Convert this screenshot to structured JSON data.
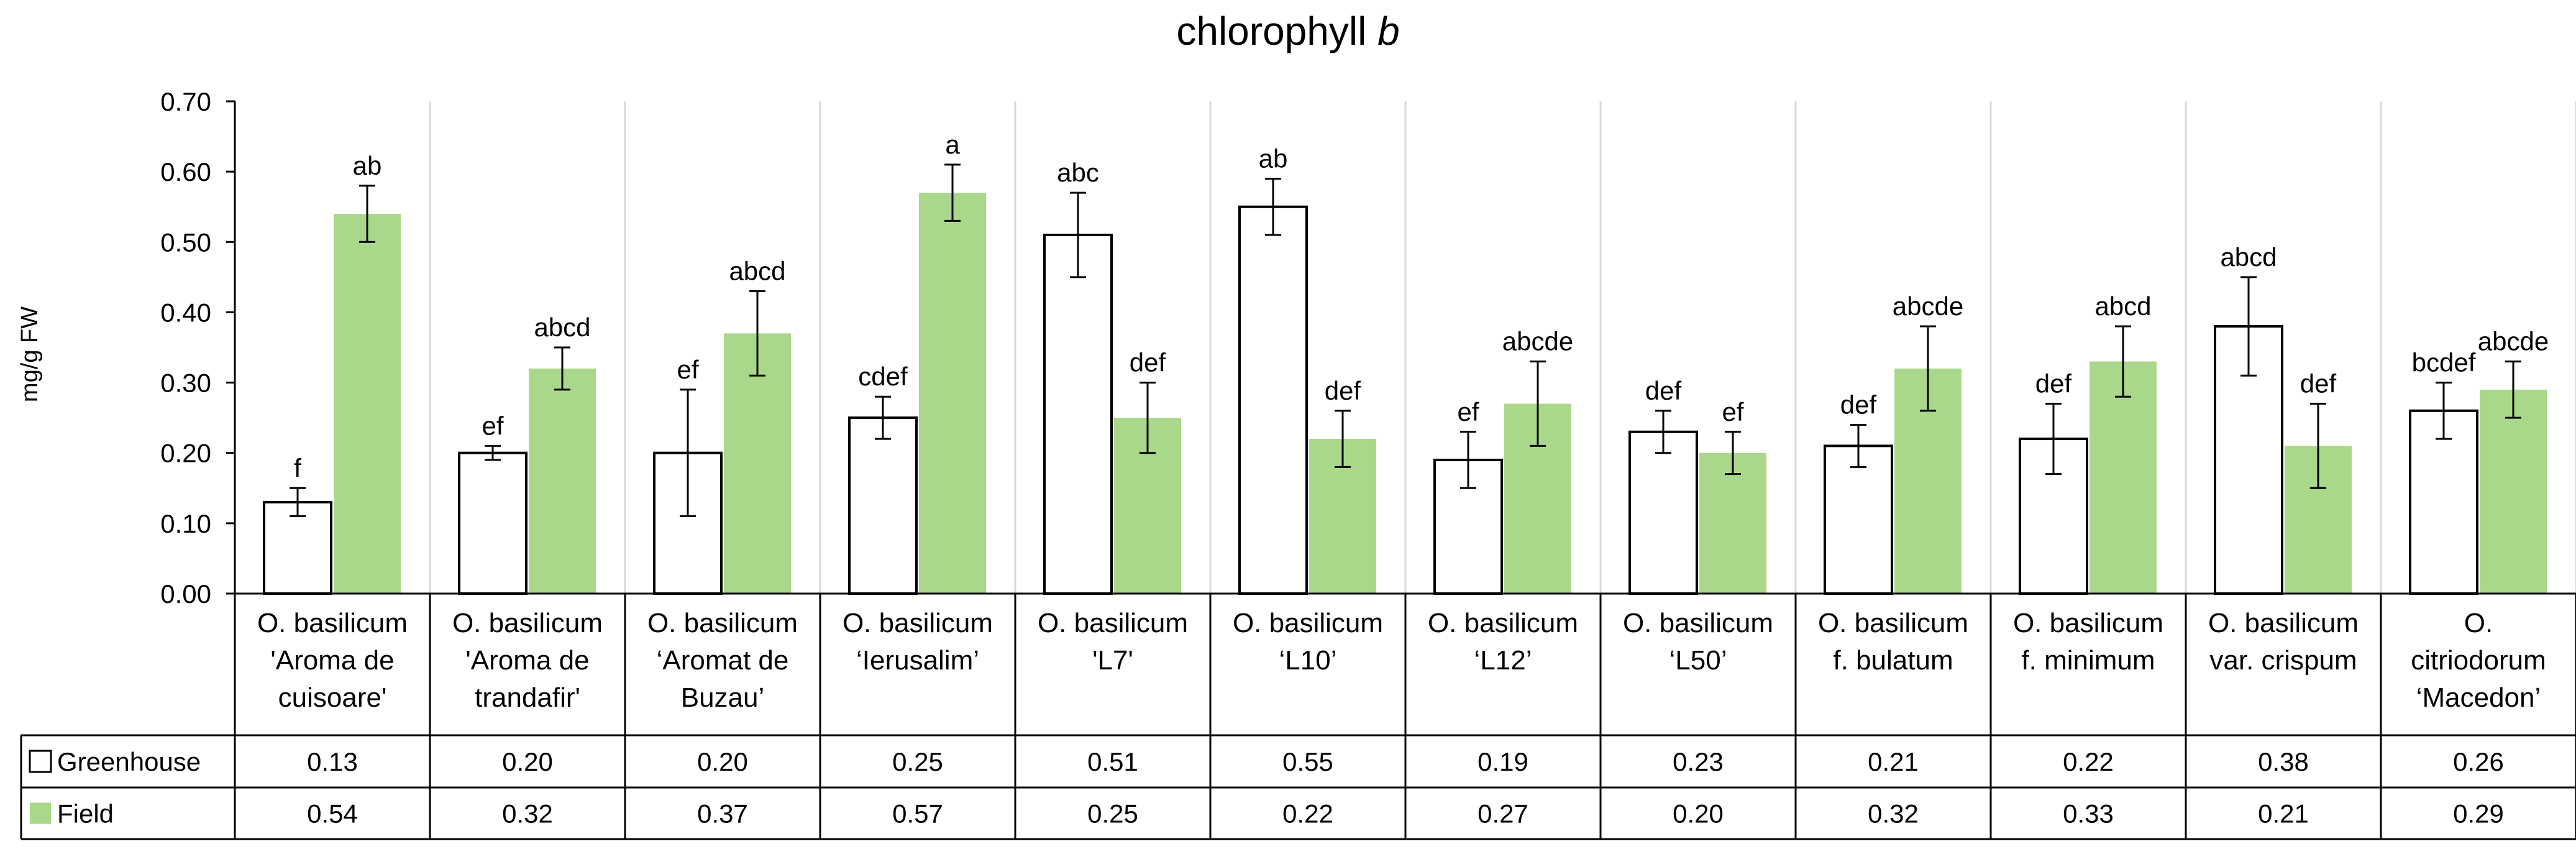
{
  "chart_data": {
    "type": "bar",
    "title_main": "chlorophyll ",
    "title_italic": "b",
    "ylabel": "mg/g FW",
    "ylim": [
      0,
      0.7
    ],
    "yticks": [
      "0.00",
      "0.10",
      "0.20",
      "0.30",
      "0.40",
      "0.50",
      "0.60",
      "0.70"
    ],
    "grid": "vertical separators between categories",
    "legend_placement": "data-table rows below x-axis",
    "categories": [
      [
        "O. basilicum",
        "'Aroma de",
        "cuisoare'"
      ],
      [
        "O. basilicum",
        "'Aroma de",
        "trandafir'"
      ],
      [
        "O. basilicum",
        "‘Aromat de",
        "Buzau’"
      ],
      [
        "O. basilicum",
        "‘Ierusalim’"
      ],
      [
        "O. basilicum",
        "'L7'"
      ],
      [
        "O. basilicum",
        "‘L10’"
      ],
      [
        "O. basilicum",
        "‘L12’"
      ],
      [
        "O. basilicum",
        "‘L50’"
      ],
      [
        "O. basilicum",
        "f. bulatum"
      ],
      [
        "O. basilicum",
        "f. minimum"
      ],
      [
        "O. basilicum",
        "var. crispum"
      ],
      [
        "O.",
        "citriodorum",
        "‘Macedon’"
      ]
    ],
    "series": [
      {
        "name": "Greenhouse",
        "color": "#ffffff",
        "stroke": "#000000",
        "values": [
          0.13,
          0.2,
          0.2,
          0.25,
          0.51,
          0.55,
          0.19,
          0.23,
          0.21,
          0.22,
          0.38,
          0.26
        ],
        "value_labels": [
          "0.13",
          "0.20",
          "0.20",
          "0.25",
          "0.51",
          "0.55",
          "0.19",
          "0.23",
          "0.21",
          "0.22",
          "0.38",
          "0.26"
        ],
        "errors": [
          0.02,
          0.01,
          0.09,
          0.03,
          0.06,
          0.04,
          0.04,
          0.03,
          0.03,
          0.05,
          0.07,
          0.04
        ],
        "letters": [
          "f",
          "ef",
          "ef",
          "cdef",
          "abc",
          "ab",
          "ef",
          "def",
          "def",
          "def",
          "abcd",
          "bcdef"
        ]
      },
      {
        "name": "Field",
        "color": "#a9d88a",
        "stroke": "none",
        "values": [
          0.54,
          0.32,
          0.37,
          0.57,
          0.25,
          0.22,
          0.27,
          0.2,
          0.32,
          0.33,
          0.21,
          0.29
        ],
        "value_labels": [
          "0.54",
          "0.32",
          "0.37",
          "0.57",
          "0.25",
          "0.22",
          "0.27",
          "0.20",
          "0.32",
          "0.33",
          "0.21",
          "0.29"
        ],
        "errors": [
          0.04,
          0.03,
          0.06,
          0.04,
          0.05,
          0.04,
          0.06,
          0.03,
          0.06,
          0.05,
          0.06,
          0.04
        ],
        "letters": [
          "ab",
          "abcd",
          "abcd",
          "a",
          "def",
          "def",
          "abcde",
          "ef",
          "abcde",
          "abcd",
          "def",
          "abcde"
        ]
      }
    ]
  }
}
